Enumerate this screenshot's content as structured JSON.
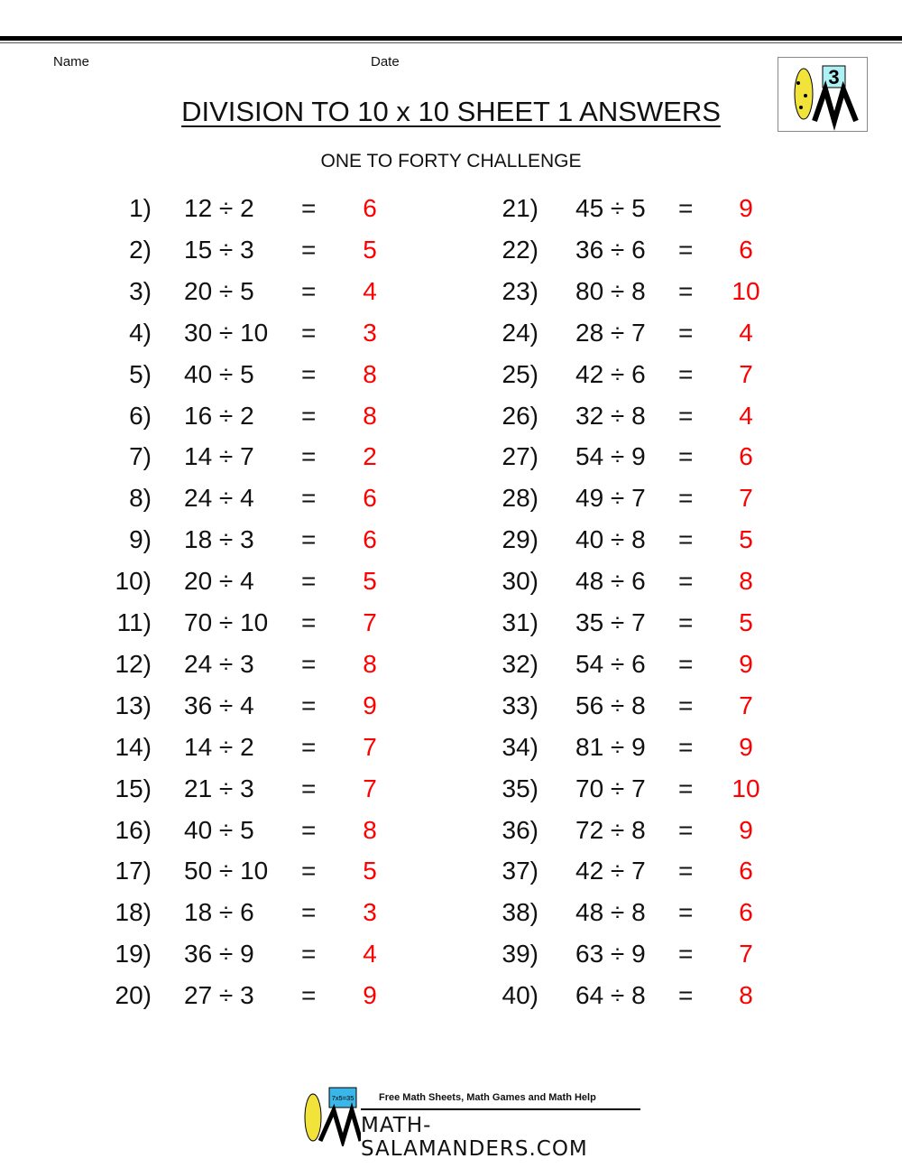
{
  "header": {
    "name_label": "Name",
    "date_label": "Date",
    "title": "DIVISION TO 10 x 10 SHEET 1 ANSWERS",
    "subtitle": "ONE TO FORTY CHALLENGE",
    "badge_number": "3"
  },
  "colors": {
    "answer": "#ff0000",
    "text": "#111111"
  },
  "problems": [
    {
      "n": "1)",
      "q": "12 ÷ 2",
      "a": "6"
    },
    {
      "n": "2)",
      "q": "15 ÷ 3",
      "a": "5"
    },
    {
      "n": "3)",
      "q": "20 ÷ 5",
      "a": "4"
    },
    {
      "n": "4)",
      "q": "30 ÷ 10",
      "a": "3"
    },
    {
      "n": "5)",
      "q": "40 ÷ 5",
      "a": "8"
    },
    {
      "n": "6)",
      "q": "16 ÷ 2",
      "a": "8"
    },
    {
      "n": "7)",
      "q": "14 ÷ 7",
      "a": "2"
    },
    {
      "n": "8)",
      "q": "24 ÷ 4",
      "a": "6"
    },
    {
      "n": "9)",
      "q": "18 ÷ 3",
      "a": "6"
    },
    {
      "n": "10)",
      "q": "20 ÷ 4",
      "a": "5"
    },
    {
      "n": "11)",
      "q": "70 ÷ 10",
      "a": "7"
    },
    {
      "n": "12)",
      "q": "24 ÷ 3",
      "a": "8"
    },
    {
      "n": "13)",
      "q": "36 ÷ 4",
      "a": "9"
    },
    {
      "n": "14)",
      "q": "14 ÷ 2",
      "a": "7"
    },
    {
      "n": "15)",
      "q": "21 ÷ 3",
      "a": "7"
    },
    {
      "n": "16)",
      "q": "40 ÷ 5",
      "a": "8"
    },
    {
      "n": "17)",
      "q": "50 ÷ 10",
      "a": "5"
    },
    {
      "n": "18)",
      "q": "18 ÷ 6",
      "a": "3"
    },
    {
      "n": "19)",
      "q": "36 ÷ 9",
      "a": "4"
    },
    {
      "n": "20)",
      "q": "27 ÷ 3",
      "a": "9"
    },
    {
      "n": "21)",
      "q": "45 ÷ 5",
      "a": "9"
    },
    {
      "n": "22)",
      "q": "36 ÷ 6",
      "a": "6"
    },
    {
      "n": "23)",
      "q": "80 ÷ 8",
      "a": "10"
    },
    {
      "n": "24)",
      "q": "28 ÷ 7",
      "a": "4"
    },
    {
      "n": "25)",
      "q": "42 ÷ 6",
      "a": "7"
    },
    {
      "n": "26)",
      "q": "32 ÷ 8",
      "a": "4"
    },
    {
      "n": "27)",
      "q": "54 ÷ 9",
      "a": "6"
    },
    {
      "n": "28)",
      "q": "49 ÷ 7",
      "a": "7"
    },
    {
      "n": "29)",
      "q": "40 ÷ 8",
      "a": "5"
    },
    {
      "n": "30)",
      "q": "48 ÷ 6",
      "a": "8"
    },
    {
      "n": "31)",
      "q": "35 ÷ 7",
      "a": "5"
    },
    {
      "n": "32)",
      "q": "54 ÷ 6",
      "a": "9"
    },
    {
      "n": "33)",
      "q": "56 ÷ 8",
      "a": "7"
    },
    {
      "n": "34)",
      "q": "81 ÷ 9",
      "a": "9"
    },
    {
      "n": "35)",
      "q": "70 ÷ 7",
      "a": "10"
    },
    {
      "n": "36)",
      "q": "72 ÷ 8",
      "a": "9"
    },
    {
      "n": "37)",
      "q": "42 ÷ 7",
      "a": "6"
    },
    {
      "n": "38)",
      "q": "48 ÷ 8",
      "a": "6"
    },
    {
      "n": "39)",
      "q": "63 ÷ 9",
      "a": "7"
    },
    {
      "n": "40)",
      "q": "64 ÷ 8",
      "a": "8"
    }
  ],
  "equals": "=",
  "footer": {
    "tagline": "Free Math Sheets, Math Games and Math Help",
    "site": "MATH-SALAMANDERS.COM",
    "board_text": "7x5=35"
  }
}
